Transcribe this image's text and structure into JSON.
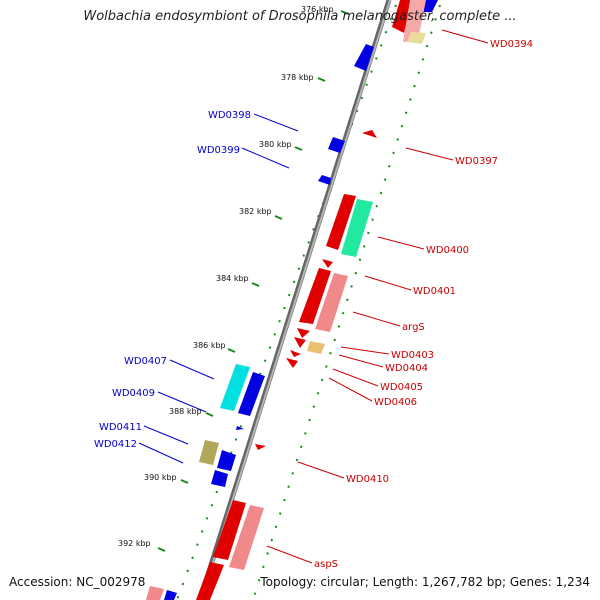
{
  "title": "Wolbachia endosymbiont of Drosophila melanogaster, complete ...",
  "accession": "Accession: NC_002978",
  "summary": "Topology: circular; Length: 1,267,782 bp; Genes: 1,234",
  "colors": {
    "forward_label": "#cc0000",
    "reverse_label": "#0000cc",
    "backbone": "#8a8a8a",
    "tick": "#1a8a1a"
  },
  "ticks": [
    "376 kbp",
    "378 kbp",
    "380 kbp",
    "382 kbp",
    "384 kbp",
    "386 kbp",
    "388 kbp",
    "390 kbp",
    "392 kbp"
  ],
  "genes_left": [
    "WD0398",
    "WD0399",
    "WD0407",
    "WD0409",
    "WD0411",
    "WD0412"
  ],
  "genes_right": [
    "WD0394",
    "WD0397",
    "WD0400",
    "WD0401",
    "argS",
    "WD0403",
    "WD0404",
    "WD0405",
    "WD0406",
    "WD0410",
    "aspS"
  ]
}
